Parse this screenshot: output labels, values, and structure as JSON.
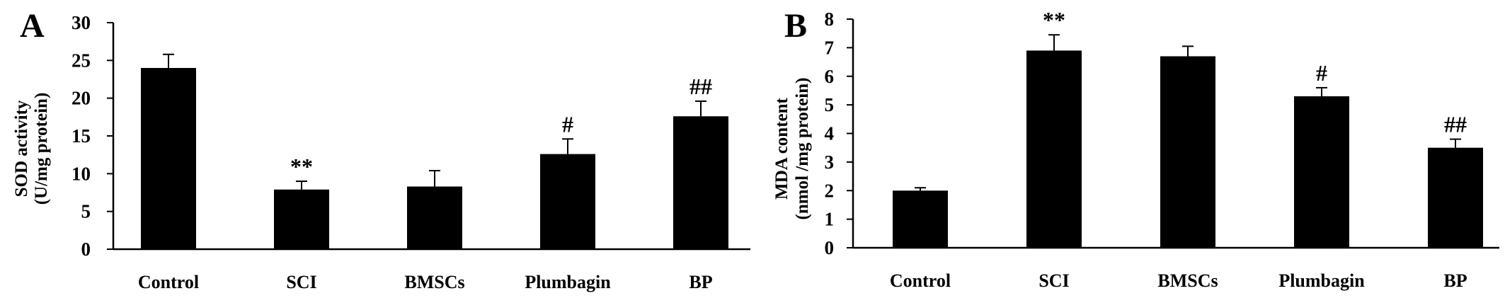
{
  "panels": [
    {
      "letter": "A",
      "ylabel_line1": "SOD activity",
      "ylabel_line2": "(U/mg protein)"
    },
    {
      "letter": "B",
      "ylabel_line1": "MDA content",
      "ylabel_line2": "(nmol /mg protein)"
    }
  ],
  "chart_data": [
    {
      "type": "bar",
      "panel_label": "A",
      "categories": [
        "Control",
        "SCI",
        "BMSCs",
        "Plumbagin",
        "BP"
      ],
      "values": [
        24.0,
        7.9,
        8.3,
        12.6,
        17.6
      ],
      "error_upper": [
        1.8,
        1.1,
        2.1,
        2.0,
        2.0
      ],
      "annotations": [
        "",
        "**",
        "",
        "#",
        "##"
      ],
      "ylabel": "SOD activity (U/mg protein)",
      "ylim": [
        0,
        30
      ],
      "yticks": [
        0,
        5,
        10,
        15,
        20,
        25,
        30
      ],
      "bar_color": "#000000",
      "grid": false,
      "legend": "none"
    },
    {
      "type": "bar",
      "panel_label": "B",
      "categories": [
        "Control",
        "SCI",
        "BMSCs",
        "Plumbagin",
        "BP"
      ],
      "values": [
        2.0,
        6.9,
        6.7,
        5.3,
        3.5
      ],
      "error_upper": [
        0.1,
        0.55,
        0.35,
        0.3,
        0.3
      ],
      "annotations": [
        "",
        "**",
        "",
        "#",
        "##"
      ],
      "ylabel": "MDA content (nmol /mg protein)",
      "ylim": [
        0,
        8
      ],
      "yticks": [
        0,
        1,
        2,
        3,
        4,
        5,
        6,
        7,
        8
      ],
      "bar_color": "#000000",
      "grid": false,
      "legend": "none"
    }
  ]
}
